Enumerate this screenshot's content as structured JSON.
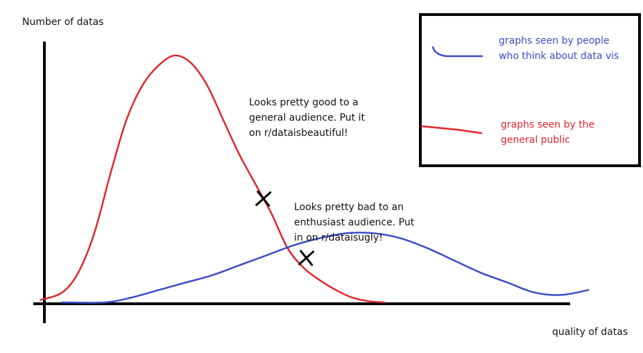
{
  "chart_data": {
    "type": "line",
    "ylabel": "Number of datas",
    "xlabel": "quality of datas",
    "xlim": [
      0,
      100
    ],
    "ylim": [
      0,
      100
    ],
    "grid": false,
    "legend_placement": "top-right",
    "series": [
      {
        "name": "graphs seen by the general public",
        "color": "#e0252d",
        "x": [
          -2,
          2,
          5,
          8,
          11,
          14,
          17,
          20,
          23,
          26,
          29,
          32,
          35,
          38,
          41,
          44,
          47,
          50,
          53,
          56,
          59,
          62
        ],
        "y": [
          1,
          4,
          12,
          28,
          52,
          74,
          88,
          96,
          100,
          97,
          88,
          74,
          60,
          48,
          36,
          22,
          14,
          9,
          5,
          2,
          0.5,
          0
        ]
      },
      {
        "name": "graphs seen by people who think about data vis",
        "color": "#3a4cc9",
        "x": [
          2,
          10,
          15,
          20,
          25,
          30,
          35,
          40,
          45,
          50,
          55,
          60,
          65,
          70,
          75,
          80,
          85,
          90,
          95,
          100
        ],
        "y": [
          0,
          0,
          2,
          5,
          8,
          11,
          15,
          19,
          23,
          26,
          28,
          28,
          26,
          22,
          17,
          12,
          8,
          4,
          3,
          5
        ]
      }
    ],
    "legend": {
      "blue_line1": "graphs seen by people",
      "blue_line2": "who think about data vis",
      "red_line1": "graphs seen by the",
      "red_line2": "general public"
    },
    "annotations": [
      {
        "series": "graphs seen by the general public",
        "x": 39.5,
        "y": 42,
        "mark": "X",
        "lines": [
          "Looks pretty good to a",
          "general audience. Put it",
          "on r/dataisbeautiful!"
        ]
      },
      {
        "series": "graphs seen by people who think about data vis",
        "x": 47.5,
        "y": 18,
        "mark": "X",
        "lines": [
          "Looks pretty bad to an",
          "enthusiast audience. Put",
          "in on r/dataisugly!"
        ]
      }
    ]
  }
}
